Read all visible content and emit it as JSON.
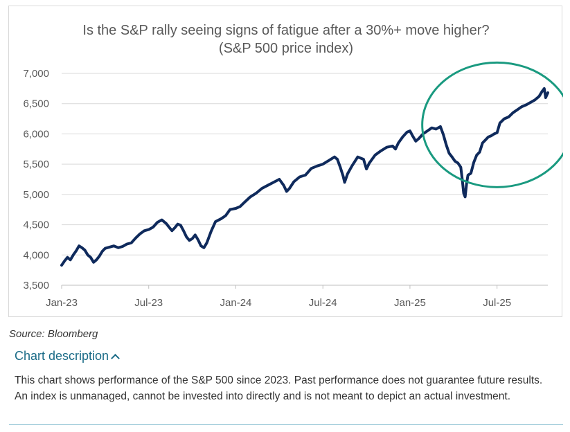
{
  "chart_data": {
    "type": "line",
    "title": "Is the S&P rally seeing signs of fatigue after a 30%+ move higher?",
    "subtitle": "(S&P 500 price index)",
    "xlabel": "",
    "ylabel": "",
    "ylim": [
      3500,
      7000
    ],
    "y_ticks": [
      3500,
      4000,
      4500,
      5000,
      5500,
      6000,
      6500,
      7000
    ],
    "y_tick_labels": [
      "3,500",
      "4,000",
      "4,500",
      "5,000",
      "5,500",
      "6,000",
      "6,500",
      "7,000"
    ],
    "x_range_months": [
      0,
      33.5
    ],
    "x_ticks": [
      {
        "m": 0,
        "label": "Jan-23"
      },
      {
        "m": 6,
        "label": "Jul-23"
      },
      {
        "m": 12,
        "label": "Jan-24"
      },
      {
        "m": 18,
        "label": "Jul-24"
      },
      {
        "m": 24,
        "label": "Jan-25"
      },
      {
        "m": 30,
        "label": "Jul-25"
      }
    ],
    "grid": true,
    "series": [
      {
        "name": "S&P 500",
        "color": "#0f2a5c",
        "points": [
          [
            0.0,
            3830
          ],
          [
            0.2,
            3900
          ],
          [
            0.4,
            3960
          ],
          [
            0.6,
            3920
          ],
          [
            0.8,
            4000
          ],
          [
            1.0,
            4070
          ],
          [
            1.2,
            4150
          ],
          [
            1.4,
            4120
          ],
          [
            1.6,
            4080
          ],
          [
            1.8,
            4000
          ],
          [
            2.0,
            3960
          ],
          [
            2.2,
            3880
          ],
          [
            2.4,
            3920
          ],
          [
            2.6,
            3980
          ],
          [
            2.8,
            4060
          ],
          [
            3.0,
            4110
          ],
          [
            3.3,
            4130
          ],
          [
            3.6,
            4150
          ],
          [
            3.9,
            4120
          ],
          [
            4.2,
            4140
          ],
          [
            4.5,
            4180
          ],
          [
            4.8,
            4200
          ],
          [
            5.1,
            4280
          ],
          [
            5.4,
            4350
          ],
          [
            5.7,
            4400
          ],
          [
            6.0,
            4420
          ],
          [
            6.3,
            4460
          ],
          [
            6.6,
            4540
          ],
          [
            6.9,
            4580
          ],
          [
            7.2,
            4520
          ],
          [
            7.4,
            4460
          ],
          [
            7.6,
            4400
          ],
          [
            7.8,
            4450
          ],
          [
            8.0,
            4510
          ],
          [
            8.2,
            4490
          ],
          [
            8.4,
            4400
          ],
          [
            8.6,
            4300
          ],
          [
            8.8,
            4240
          ],
          [
            9.0,
            4270
          ],
          [
            9.2,
            4330
          ],
          [
            9.4,
            4250
          ],
          [
            9.6,
            4150
          ],
          [
            9.8,
            4120
          ],
          [
            10.0,
            4200
          ],
          [
            10.3,
            4390
          ],
          [
            10.6,
            4550
          ],
          [
            11.0,
            4600
          ],
          [
            11.3,
            4650
          ],
          [
            11.6,
            4750
          ],
          [
            12.0,
            4770
          ],
          [
            12.3,
            4800
          ],
          [
            12.6,
            4870
          ],
          [
            13.0,
            4960
          ],
          [
            13.4,
            5020
          ],
          [
            13.8,
            5100
          ],
          [
            14.2,
            5150
          ],
          [
            14.6,
            5200
          ],
          [
            15.0,
            5250
          ],
          [
            15.3,
            5150
          ],
          [
            15.5,
            5050
          ],
          [
            15.7,
            5100
          ],
          [
            16.0,
            5210
          ],
          [
            16.4,
            5290
          ],
          [
            16.8,
            5320
          ],
          [
            17.2,
            5430
          ],
          [
            17.6,
            5470
          ],
          [
            18.0,
            5500
          ],
          [
            18.4,
            5560
          ],
          [
            18.8,
            5620
          ],
          [
            19.0,
            5580
          ],
          [
            19.2,
            5450
          ],
          [
            19.4,
            5300
          ],
          [
            19.5,
            5200
          ],
          [
            19.7,
            5340
          ],
          [
            20.0,
            5470
          ],
          [
            20.4,
            5620
          ],
          [
            20.8,
            5580
          ],
          [
            21.0,
            5420
          ],
          [
            21.2,
            5520
          ],
          [
            21.6,
            5650
          ],
          [
            22.0,
            5720
          ],
          [
            22.4,
            5780
          ],
          [
            22.8,
            5800
          ],
          [
            23.0,
            5750
          ],
          [
            23.2,
            5850
          ],
          [
            23.5,
            5950
          ],
          [
            23.8,
            6030
          ],
          [
            24.0,
            6050
          ],
          [
            24.2,
            5960
          ],
          [
            24.4,
            5880
          ],
          [
            24.6,
            5920
          ],
          [
            24.9,
            6000
          ],
          [
            25.2,
            6050
          ],
          [
            25.5,
            6100
          ],
          [
            25.8,
            6080
          ],
          [
            26.1,
            6120
          ],
          [
            26.3,
            5990
          ],
          [
            26.5,
            5820
          ],
          [
            26.7,
            5680
          ],
          [
            26.9,
            5620
          ],
          [
            27.1,
            5550
          ],
          [
            27.3,
            5520
          ],
          [
            27.5,
            5450
          ],
          [
            27.6,
            5250
          ],
          [
            27.7,
            5020
          ],
          [
            27.8,
            4960
          ],
          [
            27.9,
            5180
          ],
          [
            28.0,
            5320
          ],
          [
            28.2,
            5350
          ],
          [
            28.4,
            5530
          ],
          [
            28.6,
            5650
          ],
          [
            28.8,
            5700
          ],
          [
            29.0,
            5850
          ],
          [
            29.2,
            5900
          ],
          [
            29.4,
            5950
          ],
          [
            29.6,
            5970
          ],
          [
            29.8,
            6000
          ],
          [
            30.0,
            6020
          ],
          [
            30.2,
            6180
          ],
          [
            30.5,
            6250
          ],
          [
            30.8,
            6280
          ],
          [
            31.1,
            6350
          ],
          [
            31.4,
            6400
          ],
          [
            31.7,
            6450
          ],
          [
            32.0,
            6480
          ],
          [
            32.3,
            6520
          ],
          [
            32.6,
            6560
          ],
          [
            32.9,
            6620
          ],
          [
            33.1,
            6700
          ],
          [
            33.25,
            6750
          ],
          [
            33.35,
            6600
          ],
          [
            33.5,
            6680
          ]
        ]
      }
    ],
    "annotations": [
      {
        "type": "ellipse",
        "color": "#1a9a80",
        "center": [
          30.0,
          6150
        ],
        "label": ""
      }
    ]
  },
  "source": "Source: Bloomberg",
  "description": {
    "toggle_label": "Chart description",
    "text": "This chart shows performance of the S&P 500 since 2023. Past performance does not guarantee future results. An index is unmanaged, cannot be invested into directly and is not meant to depict an actual investment."
  },
  "colors": {
    "line": "#0f2a5c",
    "grid": "#d9d9d9",
    "ellipse": "#1a9a80",
    "link": "#1a6b87"
  }
}
